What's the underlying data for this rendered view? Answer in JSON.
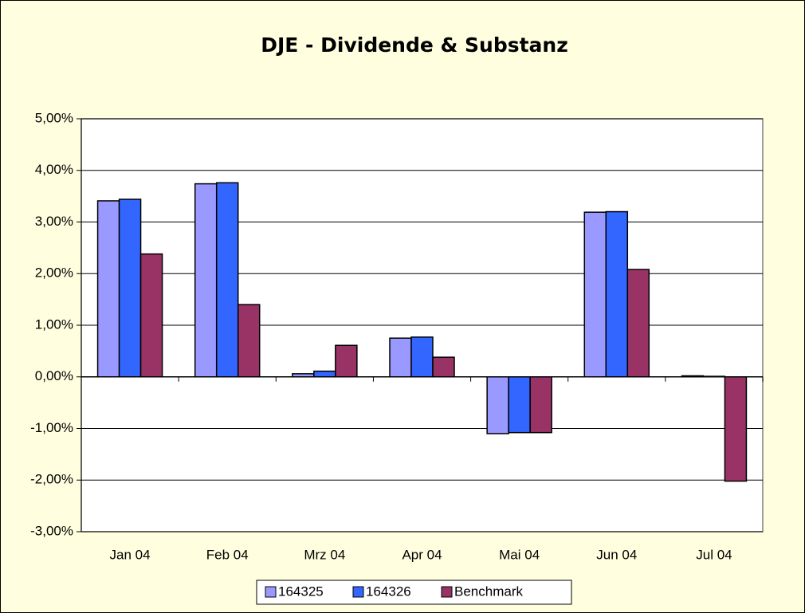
{
  "chart_data": {
    "type": "bar",
    "title": "DJE - Dividende & Substanz",
    "categories": [
      "Jan 04",
      "Feb 04",
      "Mrz 04",
      "Apr 04",
      "Mai 04",
      "Jun 04",
      "Jul 04"
    ],
    "series": [
      {
        "name": "164325",
        "color": "#9999ff",
        "values": [
          3.41,
          3.74,
          0.06,
          0.75,
          -1.1,
          3.19,
          0.02
        ]
      },
      {
        "name": "164326",
        "color": "#3366ff",
        "values": [
          3.44,
          3.76,
          0.11,
          0.77,
          -1.08,
          3.2,
          0.01
        ]
      },
      {
        "name": "Benchmark",
        "color": "#993366",
        "values": [
          2.38,
          1.4,
          0.61,
          0.38,
          -1.08,
          2.08,
          -2.02
        ]
      }
    ],
    "ylim": [
      -3,
      5
    ],
    "yticks": [
      {
        "value": -3,
        "label": "-3,00%"
      },
      {
        "value": -2,
        "label": "-2,00%"
      },
      {
        "value": -1,
        "label": "-1,00%"
      },
      {
        "value": 0,
        "label": "0,00%"
      },
      {
        "value": 1,
        "label": "1,00%"
      },
      {
        "value": 2,
        "label": "2,00%"
      },
      {
        "value": 3,
        "label": "3,00%"
      },
      {
        "value": 4,
        "label": "4,00%"
      },
      {
        "value": 5,
        "label": "5,00%"
      }
    ],
    "grid": true,
    "legend": "bottom"
  }
}
